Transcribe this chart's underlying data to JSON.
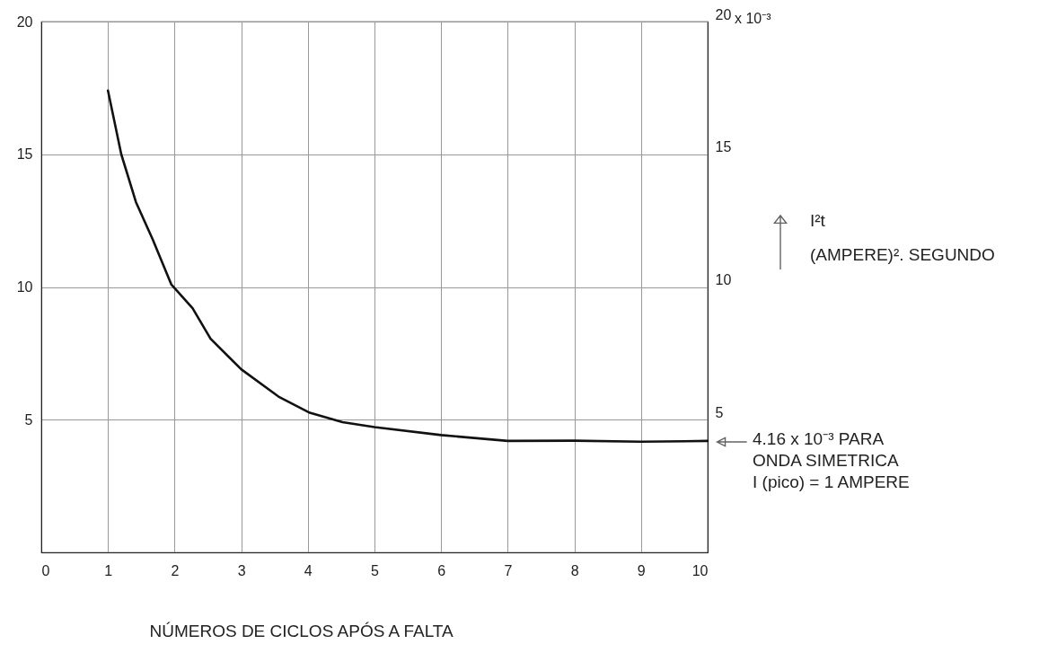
{
  "chart_data": {
    "type": "line",
    "xlabel": "NÚMEROS DE CICLOS APÓS A FALTA",
    "y2label": "I²t\n(AMPERE)². SEGUNDO",
    "x": [
      1.0,
      1.2,
      1.42,
      1.67,
      1.95,
      2.27,
      2.54,
      3.0,
      3.56,
      4.03,
      4.52,
      5.0,
      6.0,
      7.0,
      8.0,
      9.0,
      10.0
    ],
    "series": [
      {
        "color": "#111111",
        "values": [
          17.4,
          15.0,
          13.2,
          11.8,
          10.1,
          9.2,
          8.05,
          6.9,
          5.87,
          5.26,
          4.91,
          4.72,
          4.42,
          4.2,
          4.21,
          4.17,
          4.2
        ]
      }
    ],
    "xlim": [
      0,
      10
    ],
    "xticks": [
      0,
      1,
      2,
      3,
      4,
      5,
      6,
      7,
      8,
      9,
      10
    ],
    "ylim": [
      0,
      20
    ],
    "yticks": [
      5,
      10,
      15,
      20
    ],
    "y2lim": [
      0,
      20
    ],
    "y2ticks": [
      5,
      10,
      15,
      20
    ],
    "annotations": [
      "x 10⁻³",
      {
        "text": "4.16 x 10⁻³ PARA\nONDA SIMETRICA\nI (pico) = 1 AMPERE",
        "x": 10,
        "y": 4.16
      }
    ],
    "grid": true,
    "marker": "none",
    "line_style": "solid"
  }
}
